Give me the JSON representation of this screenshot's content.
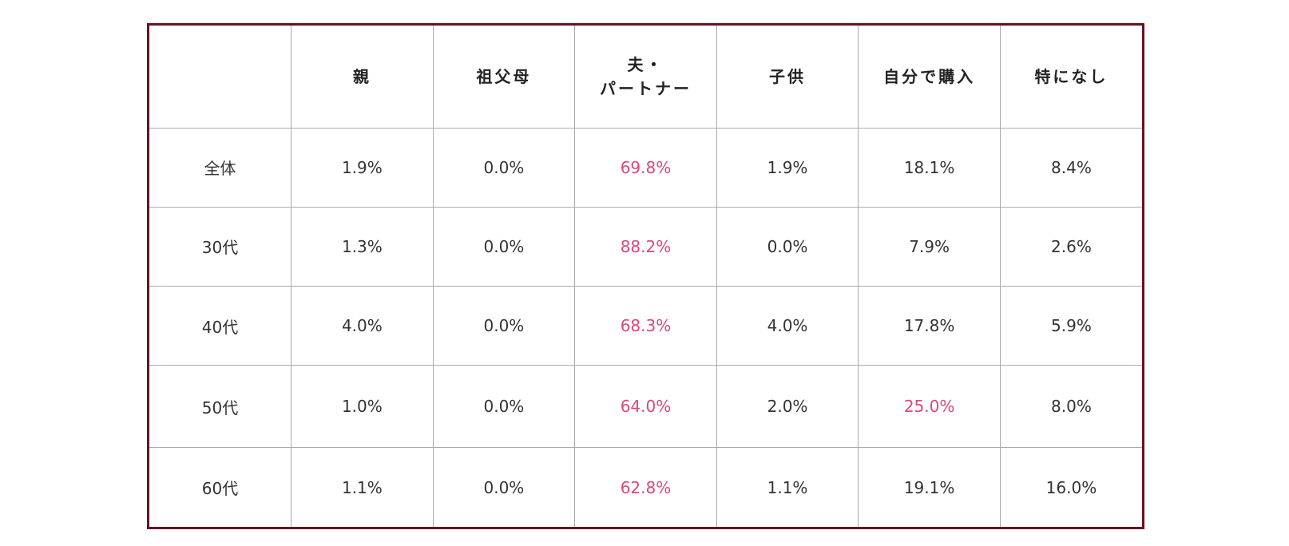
{
  "chart_data": {
    "type": "table",
    "columns": [
      "",
      "親",
      "祖父母",
      "夫・\nパートナー",
      "子供",
      "自分で購入",
      "特になし"
    ],
    "rows": [
      {
        "label": "全体",
        "values": [
          "1.9%",
          "0.0%",
          "69.8%",
          "1.9%",
          "18.1%",
          "8.4%"
        ],
        "highlight": [
          false,
          false,
          true,
          false,
          false,
          false
        ]
      },
      {
        "label": "30代",
        "values": [
          "1.3%",
          "0.0%",
          "88.2%",
          "0.0%",
          "7.9%",
          "2.6%"
        ],
        "highlight": [
          false,
          false,
          true,
          false,
          false,
          false
        ]
      },
      {
        "label": "40代",
        "values": [
          "4.0%",
          "0.0%",
          "68.3%",
          "4.0%",
          "17.8%",
          "5.9%"
        ],
        "highlight": [
          false,
          false,
          true,
          false,
          false,
          false
        ]
      },
      {
        "label": "50代",
        "values": [
          "1.0%",
          "0.0%",
          "64.0%",
          "2.0%",
          "25.0%",
          "8.0%"
        ],
        "highlight": [
          false,
          false,
          true,
          false,
          true,
          false
        ]
      },
      {
        "label": "60代",
        "values": [
          "1.1%",
          "0.0%",
          "62.8%",
          "1.1%",
          "19.1%",
          "16.0%"
        ],
        "highlight": [
          false,
          false,
          true,
          false,
          false,
          false
        ]
      }
    ],
    "colors": {
      "frame": "#6b1020",
      "grid": "#aaaaaa",
      "text": "#333333",
      "highlight": "#e0457b"
    }
  }
}
